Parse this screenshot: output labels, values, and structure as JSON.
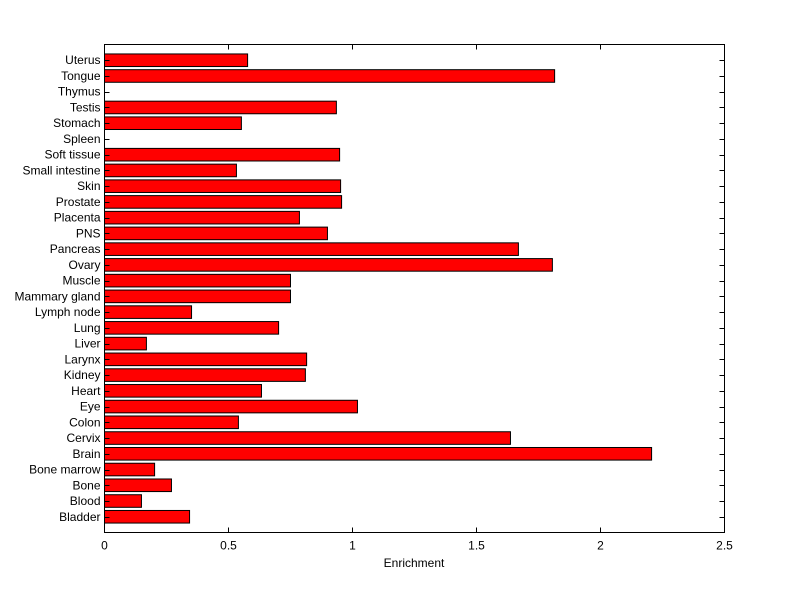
{
  "chart_data": {
    "type": "bar",
    "orientation": "horizontal",
    "title": "",
    "xlabel": "Enrichment",
    "ylabel": "",
    "xlim": [
      0,
      2.5
    ],
    "xticks": [
      0,
      0.5,
      1,
      1.5,
      2,
      2.5
    ],
    "xtick_labels": [
      "0",
      "0.5",
      "1",
      "1.5",
      "2",
      "2.5"
    ],
    "grid": false,
    "bar_color": "#ff0000",
    "categories": [
      "Bladder",
      "Blood",
      "Bone",
      "Bone marrow",
      "Brain",
      "Cervix",
      "Colon",
      "Eye",
      "Heart",
      "Kidney",
      "Larynx",
      "Liver",
      "Lung",
      "Lymph node",
      "Mammary gland",
      "Muscle",
      "Ovary",
      "Pancreas",
      "PNS",
      "Placenta",
      "Prostate",
      "Skin",
      "Small intestine",
      "Soft tissue",
      "Spleen",
      "Stomach",
      "Testis",
      "Thymus",
      "Tongue",
      "Uterus"
    ],
    "values": [
      0.343,
      0.149,
      0.27,
      0.202,
      2.206,
      1.637,
      0.54,
      1.02,
      0.633,
      0.81,
      0.815,
      0.169,
      0.702,
      0.351,
      0.75,
      0.75,
      1.806,
      1.669,
      0.899,
      0.786,
      0.956,
      0.952,
      0.532,
      0.948,
      0,
      0.552,
      0.935,
      0,
      1.815,
      0.577
    ]
  }
}
